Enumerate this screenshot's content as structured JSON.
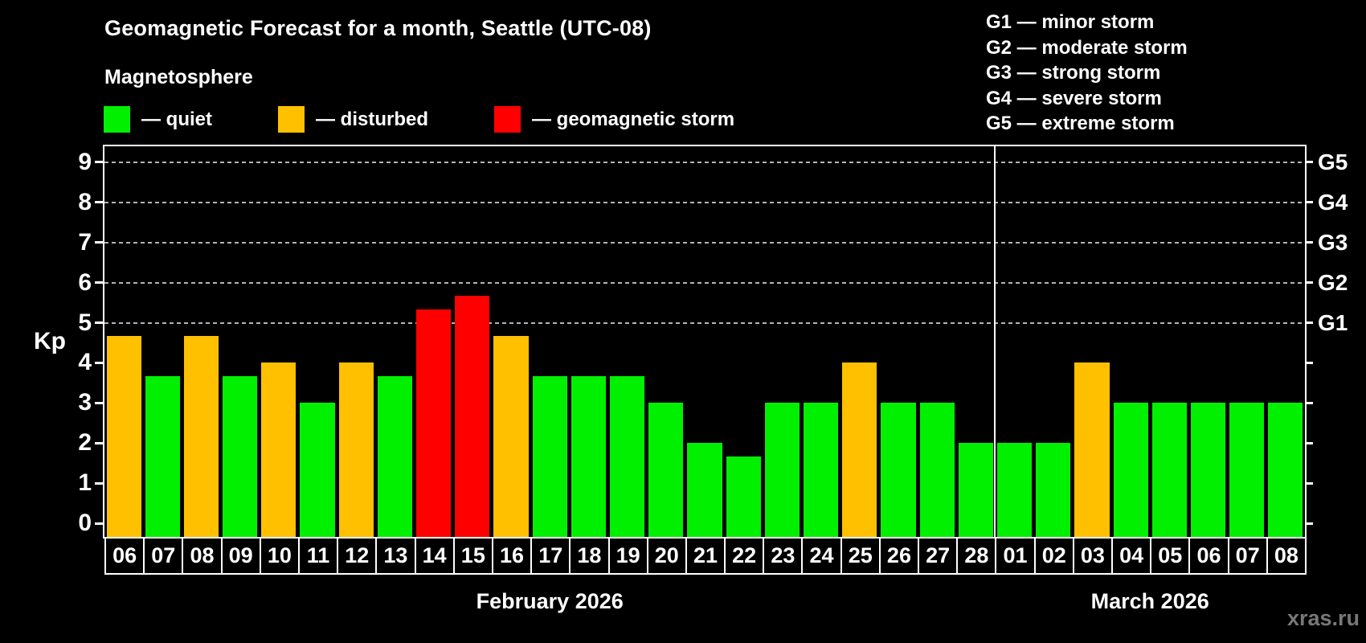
{
  "header": {
    "title": "Geomagnetic Forecast for a month, Seattle (UTC-08)",
    "subtitle": "Magnetosphere"
  },
  "magnetosphere_legend": {
    "items": [
      {
        "key": "quiet",
        "label": "— quiet",
        "color": "#00f000"
      },
      {
        "key": "disturbed",
        "label": "— disturbed",
        "color": "#ffc000"
      },
      {
        "key": "storm",
        "label": "— geomagnetic storm",
        "color": "#ff0000"
      }
    ]
  },
  "storm_scale_legend": {
    "items": [
      {
        "code": "G1",
        "label": "G1 — minor storm"
      },
      {
        "code": "G2",
        "label": "G2 — moderate storm"
      },
      {
        "code": "G3",
        "label": "G3 — strong storm"
      },
      {
        "code": "G4",
        "label": "G4 — severe storm"
      },
      {
        "code": "G5",
        "label": "G5 — extreme storm"
      }
    ]
  },
  "watermark": "xras.ru",
  "chart_data": {
    "type": "bar",
    "ylabel": "Kp",
    "ylim": [
      -0.35,
      9.4
    ],
    "yticks": [
      0,
      1,
      2,
      3,
      4,
      5,
      6,
      7,
      8,
      9
    ],
    "gridlines_at": [
      5,
      6,
      7,
      8,
      9
    ],
    "grid_style": "dashed horizontal",
    "right_axis_labels": [
      {
        "kp": 5,
        "label": "G1"
      },
      {
        "kp": 6,
        "label": "G2"
      },
      {
        "kp": 7,
        "label": "G3"
      },
      {
        "kp": 8,
        "label": "G4"
      },
      {
        "kp": 9,
        "label": "G5"
      }
    ],
    "status_colors": {
      "quiet": "#00f000",
      "disturbed": "#ffc000",
      "storm": "#ff0000"
    },
    "months": [
      {
        "key": "feb",
        "label": "February 2026"
      },
      {
        "key": "mar",
        "label": "March 2026"
      }
    ],
    "bars": [
      {
        "month": "feb",
        "day": "06",
        "kp": 4.67,
        "status": "disturbed"
      },
      {
        "month": "feb",
        "day": "07",
        "kp": 3.67,
        "status": "quiet"
      },
      {
        "month": "feb",
        "day": "08",
        "kp": 4.67,
        "status": "disturbed"
      },
      {
        "month": "feb",
        "day": "09",
        "kp": 3.67,
        "status": "quiet"
      },
      {
        "month": "feb",
        "day": "10",
        "kp": 4.0,
        "status": "disturbed"
      },
      {
        "month": "feb",
        "day": "11",
        "kp": 3.0,
        "status": "quiet"
      },
      {
        "month": "feb",
        "day": "12",
        "kp": 4.0,
        "status": "disturbed"
      },
      {
        "month": "feb",
        "day": "13",
        "kp": 3.67,
        "status": "quiet"
      },
      {
        "month": "feb",
        "day": "14",
        "kp": 5.33,
        "status": "storm"
      },
      {
        "month": "feb",
        "day": "15",
        "kp": 5.67,
        "status": "storm"
      },
      {
        "month": "feb",
        "day": "16",
        "kp": 4.67,
        "status": "disturbed"
      },
      {
        "month": "feb",
        "day": "17",
        "kp": 3.67,
        "status": "quiet"
      },
      {
        "month": "feb",
        "day": "18",
        "kp": 3.67,
        "status": "quiet"
      },
      {
        "month": "feb",
        "day": "19",
        "kp": 3.67,
        "status": "quiet"
      },
      {
        "month": "feb",
        "day": "20",
        "kp": 3.0,
        "status": "quiet"
      },
      {
        "month": "feb",
        "day": "21",
        "kp": 2.0,
        "status": "quiet"
      },
      {
        "month": "feb",
        "day": "22",
        "kp": 1.67,
        "status": "quiet"
      },
      {
        "month": "feb",
        "day": "23",
        "kp": 3.0,
        "status": "quiet"
      },
      {
        "month": "feb",
        "day": "24",
        "kp": 3.0,
        "status": "quiet"
      },
      {
        "month": "feb",
        "day": "25",
        "kp": 4.0,
        "status": "disturbed"
      },
      {
        "month": "feb",
        "day": "26",
        "kp": 3.0,
        "status": "quiet"
      },
      {
        "month": "feb",
        "day": "27",
        "kp": 3.0,
        "status": "quiet"
      },
      {
        "month": "feb",
        "day": "28",
        "kp": 2.0,
        "status": "quiet"
      },
      {
        "month": "mar",
        "day": "01",
        "kp": 2.0,
        "status": "quiet"
      },
      {
        "month": "mar",
        "day": "02",
        "kp": 2.0,
        "status": "quiet"
      },
      {
        "month": "mar",
        "day": "03",
        "kp": 4.0,
        "status": "disturbed"
      },
      {
        "month": "mar",
        "day": "04",
        "kp": 3.0,
        "status": "quiet"
      },
      {
        "month": "mar",
        "day": "05",
        "kp": 3.0,
        "status": "quiet"
      },
      {
        "month": "mar",
        "day": "06",
        "kp": 3.0,
        "status": "quiet"
      },
      {
        "month": "mar",
        "day": "07",
        "kp": 3.0,
        "status": "quiet"
      },
      {
        "month": "mar",
        "day": "08",
        "kp": 3.0,
        "status": "quiet"
      }
    ]
  }
}
